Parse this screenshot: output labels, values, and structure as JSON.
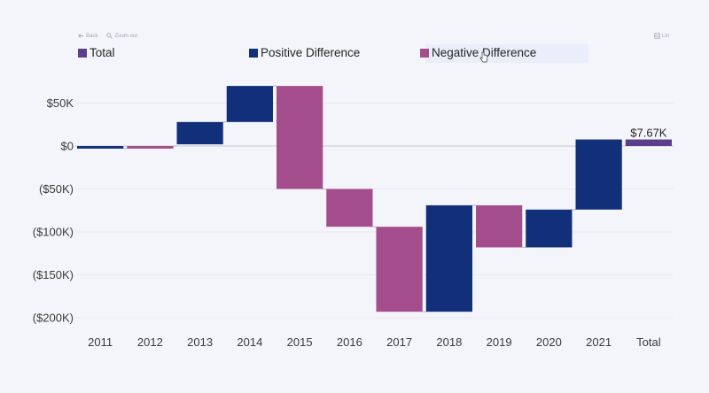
{
  "toolbar": {
    "back_label": "Back",
    "zoom_label": "Zoom-out",
    "toggle_label": "Lin"
  },
  "legend": {
    "total": "Total",
    "positive": "Positive Difference",
    "negative": "Negative Difference"
  },
  "colors": {
    "total": "#5b3f8c",
    "positive": "#12307a",
    "negative": "#a44d8c",
    "background": "#f4f5fa"
  },
  "chart_data": {
    "type": "waterfall",
    "title": "",
    "xlabel": "",
    "ylabel": "",
    "ylim": [
      -200000,
      60000
    ],
    "yticks": [
      50000,
      0,
      -50000,
      -100000,
      -150000,
      -200000
    ],
    "ytick_labels": [
      "$50K",
      "$0",
      "($50K)",
      "($100K)",
      "($150K)",
      "($200K)"
    ],
    "categories": [
      "2011",
      "2012",
      "2013",
      "2014",
      "2015",
      "2016",
      "2017",
      "2018",
      "2019",
      "2020",
      "2021",
      "Total"
    ],
    "bars": [
      {
        "category": "2011",
        "start": 0,
        "end": -3000,
        "kind": "positive"
      },
      {
        "category": "2012",
        "start": -3000,
        "end": 0,
        "kind": "negative"
      },
      {
        "category": "2013",
        "start": 2000,
        "end": 28000,
        "kind": "positive"
      },
      {
        "category": "2014",
        "start": 28000,
        "end": 70000,
        "kind": "positive"
      },
      {
        "category": "2015",
        "start": 70000,
        "end": -50000,
        "kind": "negative"
      },
      {
        "category": "2016",
        "start": -50000,
        "end": -94000,
        "kind": "negative"
      },
      {
        "category": "2017",
        "start": -94000,
        "end": -193000,
        "kind": "negative"
      },
      {
        "category": "2018",
        "start": -193000,
        "end": -69000,
        "kind": "positive"
      },
      {
        "category": "2019",
        "start": -69000,
        "end": -118000,
        "kind": "negative"
      },
      {
        "category": "2020",
        "start": -118000,
        "end": -74000,
        "kind": "positive"
      },
      {
        "category": "2021",
        "start": -74000,
        "end": 7670,
        "kind": "positive"
      },
      {
        "category": "Total",
        "start": 0,
        "end": 7670,
        "kind": "total"
      }
    ],
    "data_labels": [
      {
        "category": "Total",
        "text": "$7.67K"
      }
    ]
  }
}
